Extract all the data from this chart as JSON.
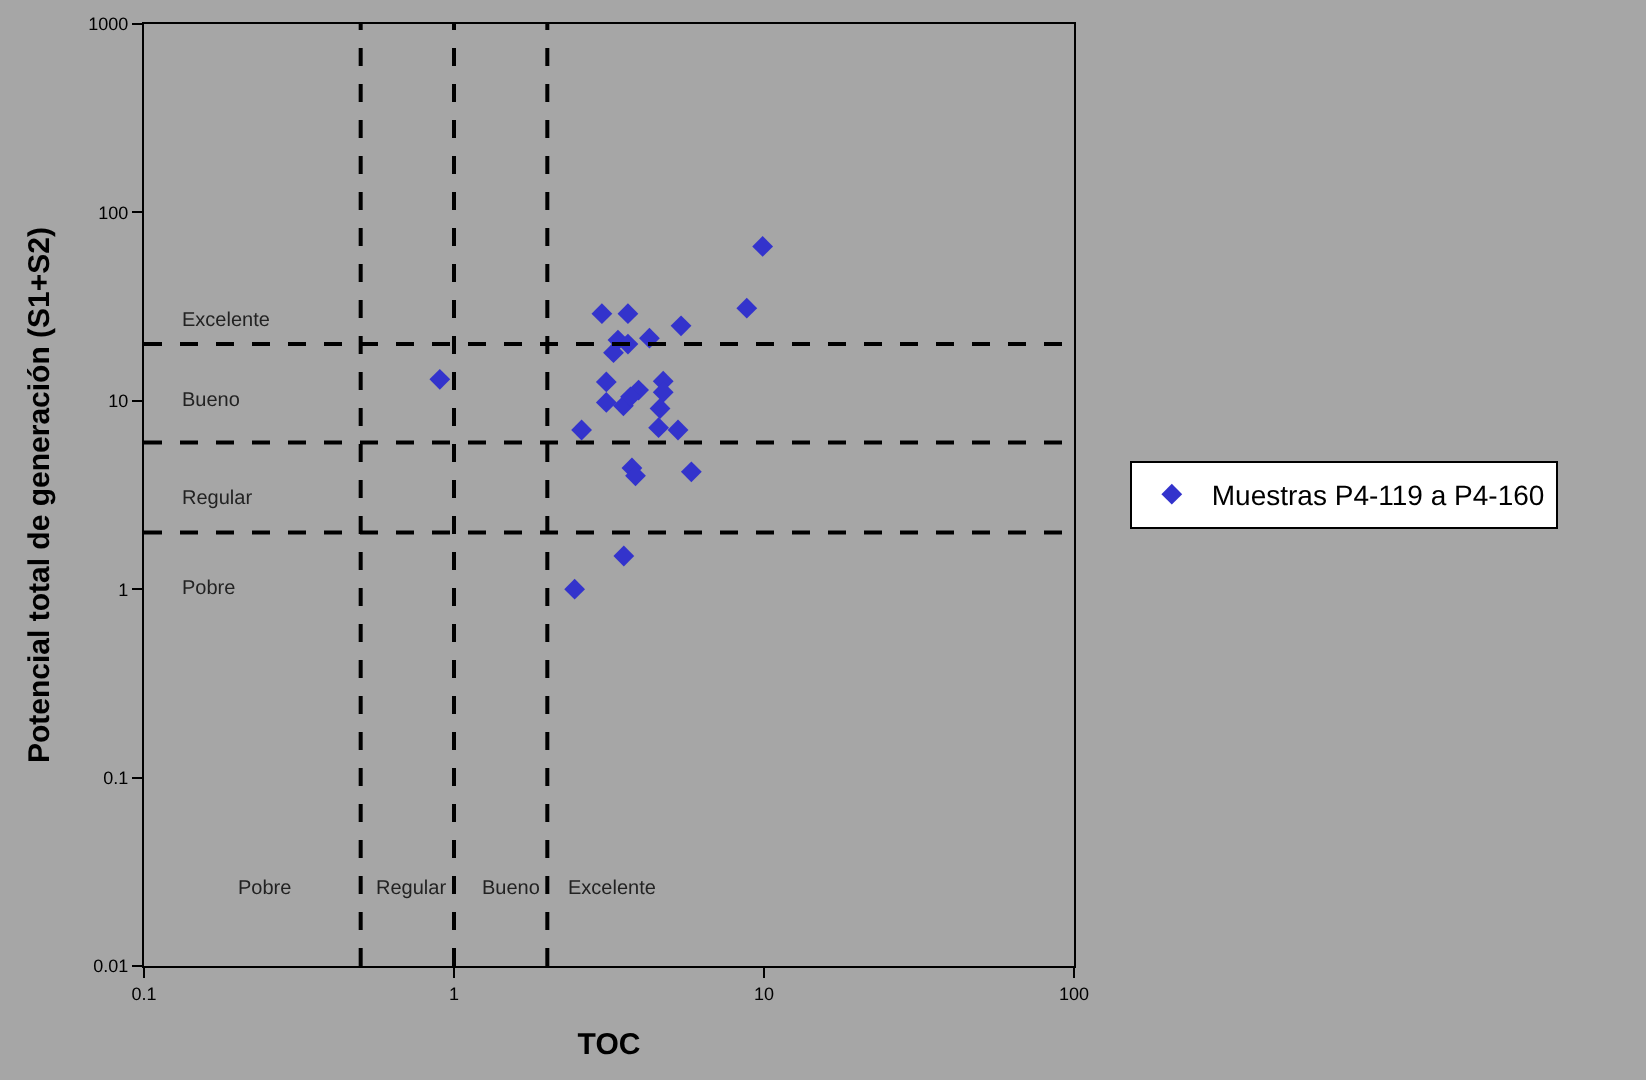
{
  "chart_data": {
    "type": "scatter",
    "xlabel": "TOC",
    "ylabel": "Potencial total de generación (S1+S2)",
    "log": "xy",
    "grid": false,
    "legend": "right",
    "marker": "diamond",
    "xlim": [
      0.1,
      100
    ],
    "xticks": [
      0.1,
      1,
      10,
      100
    ],
    "ylim": [
      0.01,
      1000
    ],
    "yticks": [
      0.01,
      0.1,
      1,
      10,
      100,
      1000
    ],
    "series": [
      {
        "name": "Muestras P4-119 a P4-160",
        "color": "#3333cc",
        "x": [
          9.9,
          8.8,
          3.0,
          3.64,
          5.4,
          4.27,
          3.38,
          3.64,
          3.27,
          3.1,
          4.73,
          3.94,
          4.73,
          3.1,
          3.52,
          4.62,
          3.71,
          2.58,
          4.57,
          5.28,
          3.75,
          3.85,
          5.83,
          3.53,
          2.45,
          0.9
        ],
        "values": [
          66,
          31,
          29,
          29,
          25,
          21.5,
          21,
          20,
          18,
          12.6,
          12.7,
          11.4,
          11.1,
          9.8,
          9.4,
          9.1,
          10.5,
          7.0,
          7.2,
          7.0,
          4.4,
          4.0,
          4.2,
          1.5,
          1.0,
          13
        ]
      }
    ],
    "ref_lines": [
      {
        "axis": "x",
        "value": 0.5,
        "line_style": "dashed",
        "color": "#000000"
      },
      {
        "axis": "x",
        "value": 1,
        "line_style": "dashed",
        "color": "#000000"
      },
      {
        "axis": "x",
        "value": 2,
        "line_style": "dashed",
        "color": "#000000"
      },
      {
        "axis": "y",
        "value": 20,
        "line_style": "dashed",
        "color": "#000000"
      },
      {
        "axis": "y",
        "value": 6,
        "line_style": "dashed",
        "color": "#000000"
      },
      {
        "axis": "y",
        "value": 2,
        "line_style": "dashed",
        "color": "#000000"
      }
    ],
    "annotations": [
      "Excelente",
      "Bueno",
      "Regular",
      "Pobre",
      "Pobre",
      "Regular",
      "Bueno",
      "Excelente"
    ]
  }
}
